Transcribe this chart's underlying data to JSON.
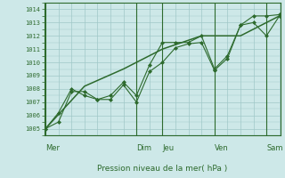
{
  "bg_color": "#cde8e8",
  "grid_color": "#a0c8c8",
  "line_color": "#2d6a2d",
  "marker_color": "#2d6a2d",
  "title": "Pression niveau de la mer( hPa )",
  "ylim": [
    1004.5,
    1014.5
  ],
  "yticks": [
    1005,
    1006,
    1007,
    1008,
    1009,
    1010,
    1011,
    1012,
    1013,
    1014
  ],
  "day_labels": [
    "Mer",
    "Dim",
    "Jeu",
    "Ven",
    "Sam"
  ],
  "day_x": [
    0.0,
    3.5,
    4.5,
    6.5,
    8.5
  ],
  "vlines_x": [
    0.0,
    3.5,
    4.5,
    6.5,
    8.5
  ],
  "xmin": -0.05,
  "xmax": 9.05,
  "series1_x": [
    0.0,
    0.5,
    1.0,
    1.5,
    2.0,
    2.5,
    3.0,
    3.5,
    4.0,
    4.5,
    5.0,
    5.5,
    6.0,
    6.5,
    7.0,
    7.5,
    8.0,
    8.5,
    9.0
  ],
  "series1_y": [
    1005.0,
    1005.5,
    1007.8,
    1007.8,
    1007.2,
    1007.2,
    1008.3,
    1007.0,
    1009.3,
    1010.0,
    1011.1,
    1011.4,
    1011.5,
    1009.4,
    1010.3,
    1012.8,
    1013.5,
    1013.5,
    1013.6
  ],
  "series2_x": [
    0.0,
    0.5,
    1.0,
    1.5,
    2.0,
    2.5,
    3.0,
    3.5,
    4.0,
    4.5,
    5.0,
    5.5,
    6.0,
    6.5,
    7.0,
    7.5,
    8.0,
    8.5,
    9.0
  ],
  "series2_y": [
    1005.0,
    1006.2,
    1008.0,
    1007.5,
    1007.2,
    1007.5,
    1008.5,
    1007.5,
    1009.8,
    1011.5,
    1011.5,
    1011.5,
    1012.0,
    1009.5,
    1010.5,
    1012.8,
    1013.0,
    1012.0,
    1013.5
  ],
  "series3_x": [
    0.0,
    1.5,
    3.0,
    4.5,
    6.0,
    7.5,
    9.0
  ],
  "series3_y": [
    1005.0,
    1008.2,
    1009.5,
    1011.0,
    1012.0,
    1012.0,
    1013.5
  ]
}
